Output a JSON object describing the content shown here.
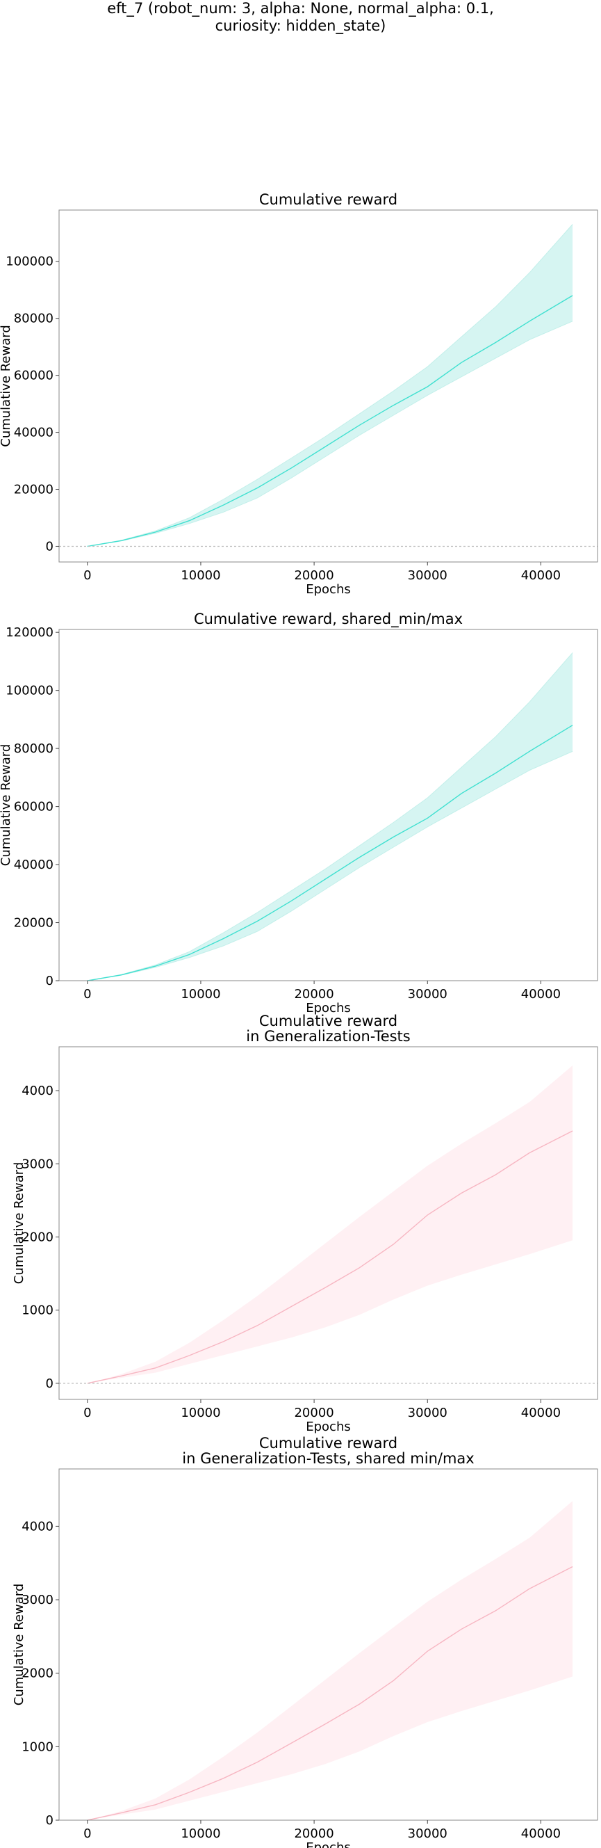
{
  "figure": {
    "suptitle": [
      "eft_7 (robot_num: 3, alpha: None, normal_alpha: 0.1,",
      "curiosity: hidden_state)"
    ]
  },
  "colors": {
    "reward_line": "#40e0d0",
    "reward_band": "#d6f5f2",
    "reward_band_edge": "#c3efea",
    "gen_line": "#f7b6c2",
    "gen_band": "#fff0f3",
    "gen_band_edge": "#ffffff",
    "zero_line": "#bbbbbb",
    "frame": "#888888"
  },
  "chart_data": [
    {
      "type": "line",
      "title": [
        "Cumulative reward"
      ],
      "xlabel": "Epochs",
      "ylabel": "Cumulative Reward",
      "xlim": [
        -2500,
        45000
      ],
      "ylim": [
        -5500,
        118000
      ],
      "xticks": [
        0,
        10000,
        20000,
        30000,
        40000
      ],
      "yticks": [
        0,
        20000,
        40000,
        60000,
        80000,
        100000
      ],
      "zero_line": true,
      "grid": false,
      "series": [
        {
          "color_key": "reward",
          "x": [
            0,
            3000,
            6000,
            9000,
            12000,
            15000,
            18000,
            21000,
            24000,
            27000,
            30000,
            33000,
            36000,
            39000,
            42800
          ],
          "mean": [
            0,
            2000,
            5000,
            9000,
            14500,
            20500,
            27500,
            35000,
            42500,
            49500,
            56000,
            64500,
            71500,
            79000,
            88000
          ],
          "upper": [
            0,
            2100,
            5400,
            10000,
            16500,
            23500,
            31000,
            38500,
            46500,
            54500,
            63000,
            73500,
            84000,
            96000,
            113000
          ],
          "lower": [
            0,
            1900,
            4600,
            8000,
            12000,
            17000,
            24000,
            31500,
            39000,
            46000,
            53000,
            59500,
            66000,
            72500,
            79000
          ]
        }
      ]
    },
    {
      "type": "line",
      "title": [
        "Cumulative reward, shared_min/max"
      ],
      "xlabel": "Epochs",
      "ylabel": "Cumulative Reward",
      "xlim": [
        -2500,
        45000
      ],
      "ylim": [
        0,
        121000
      ],
      "xticks": [
        0,
        10000,
        20000,
        30000,
        40000
      ],
      "yticks": [
        0,
        20000,
        40000,
        60000,
        80000,
        100000,
        120000
      ],
      "zero_line": false,
      "grid": false,
      "series": [
        {
          "color_key": "reward",
          "x": [
            0,
            3000,
            6000,
            9000,
            12000,
            15000,
            18000,
            21000,
            24000,
            27000,
            30000,
            33000,
            36000,
            39000,
            42800
          ],
          "mean": [
            0,
            2000,
            5000,
            9000,
            14500,
            20500,
            27500,
            35000,
            42500,
            49500,
            56000,
            64500,
            71500,
            79000,
            88000
          ],
          "upper": [
            0,
            2100,
            5400,
            10000,
            16500,
            23500,
            31000,
            38500,
            46500,
            54500,
            63000,
            73500,
            84000,
            96000,
            113000
          ],
          "lower": [
            0,
            1900,
            4600,
            8000,
            12000,
            17000,
            24000,
            31500,
            39000,
            46000,
            53000,
            59500,
            66000,
            72500,
            79000
          ]
        }
      ]
    },
    {
      "type": "line",
      "title": [
        "Cumulative reward",
        "in Generalization-Tests"
      ],
      "xlabel": "Epochs",
      "ylabel": "Cumulative Reward",
      "xlim": [
        -2500,
        45000
      ],
      "ylim": [
        -220,
        4600
      ],
      "xticks": [
        0,
        10000,
        20000,
        30000,
        40000
      ],
      "yticks": [
        0,
        1000,
        2000,
        3000,
        4000
      ],
      "zero_line": true,
      "grid": false,
      "series": [
        {
          "color_key": "gen",
          "x": [
            0,
            3000,
            6000,
            9000,
            12000,
            15000,
            18000,
            21000,
            24000,
            27000,
            30000,
            33000,
            36000,
            39000,
            42800
          ],
          "mean": [
            0,
            100,
            210,
            380,
            570,
            790,
            1050,
            1310,
            1580,
            1900,
            2300,
            2600,
            2850,
            3150,
            3450
          ],
          "upper": [
            0,
            130,
            300,
            560,
            870,
            1200,
            1560,
            1920,
            2280,
            2630,
            2980,
            3280,
            3560,
            3850,
            4350
          ],
          "lower": [
            0,
            70,
            140,
            260,
            380,
            500,
            620,
            760,
            930,
            1140,
            1330,
            1480,
            1620,
            1760,
            1950
          ]
        }
      ]
    },
    {
      "type": "line",
      "title": [
        "Cumulative reward",
        "in Generalization-Tests, shared min/max"
      ],
      "xlabel": "Epochs",
      "ylabel": "Cumulative Reward",
      "xlim": [
        -2500,
        45000
      ],
      "ylim": [
        0,
        4780
      ],
      "xticks": [
        0,
        10000,
        20000,
        30000,
        40000
      ],
      "yticks": [
        0,
        1000,
        2000,
        3000,
        4000
      ],
      "zero_line": false,
      "grid": false,
      "series": [
        {
          "color_key": "gen",
          "x": [
            0,
            3000,
            6000,
            9000,
            12000,
            15000,
            18000,
            21000,
            24000,
            27000,
            30000,
            33000,
            36000,
            39000,
            42800
          ],
          "mean": [
            0,
            100,
            210,
            380,
            570,
            790,
            1050,
            1310,
            1580,
            1900,
            2300,
            2600,
            2850,
            3150,
            3450
          ],
          "upper": [
            0,
            130,
            300,
            560,
            870,
            1200,
            1560,
            1920,
            2280,
            2630,
            2980,
            3280,
            3560,
            3850,
            4350
          ],
          "lower": [
            0,
            70,
            140,
            260,
            380,
            500,
            620,
            760,
            930,
            1140,
            1330,
            1480,
            1620,
            1760,
            1950
          ]
        }
      ]
    }
  ]
}
